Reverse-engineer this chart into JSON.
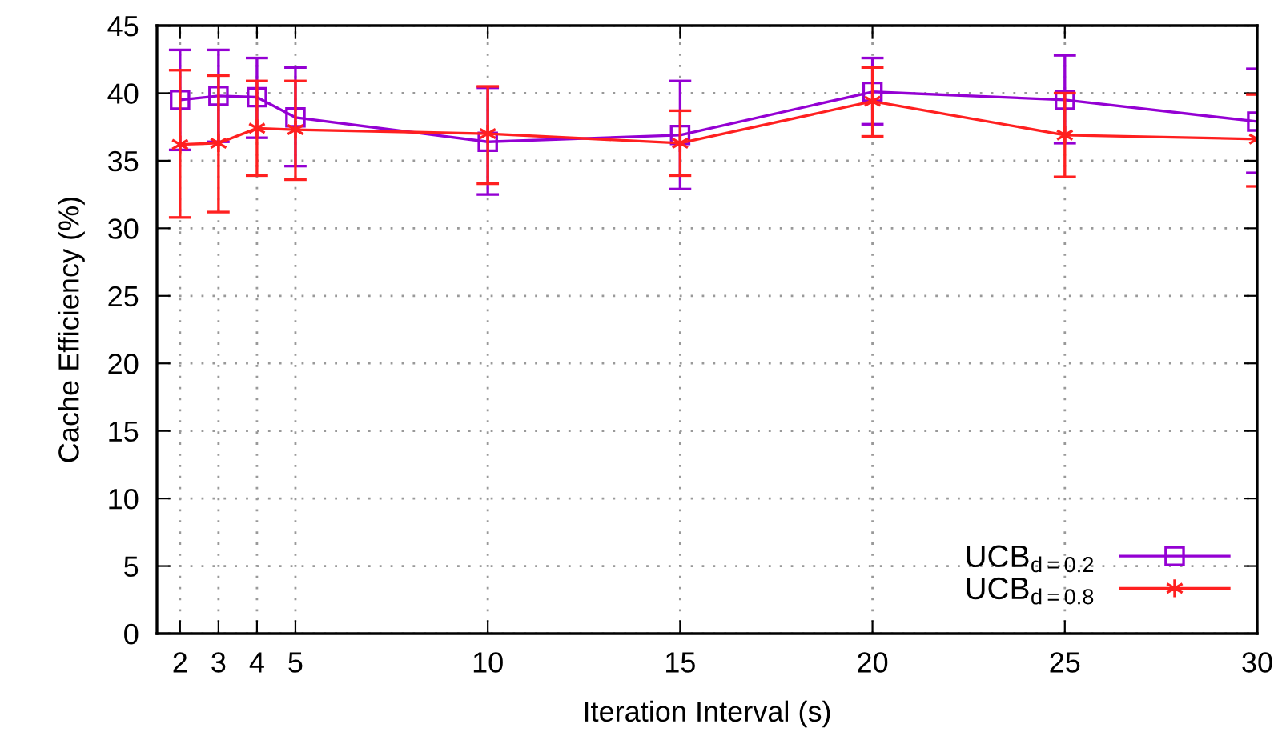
{
  "chart_data": {
    "type": "line",
    "xlabel": "Iteration Interval (s)",
    "ylabel": "Cache Efficiency (%)",
    "x": [
      2,
      3,
      4,
      5,
      10,
      15,
      20,
      25,
      30
    ],
    "xlim": [
      1.4,
      30
    ],
    "xticks": [
      2,
      3,
      4,
      5,
      10,
      15,
      20,
      25,
      30
    ],
    "ylim": [
      0,
      45
    ],
    "yticks": [
      0,
      5,
      10,
      15,
      20,
      25,
      30,
      35,
      40,
      45
    ],
    "grid": true,
    "legend": "bottom right",
    "series": [
      {
        "name": "UCB$_{d=0.2}$",
        "color": "#9400d3",
        "marker": "square",
        "values": [
          39.5,
          39.8,
          39.7,
          38.2,
          36.4,
          36.9,
          40.1,
          39.5,
          37.9
        ],
        "errors": [
          [
            35.8,
            43.2
          ],
          [
            36.4,
            43.2
          ],
          [
            36.7,
            42.6
          ],
          [
            34.6,
            41.9
          ],
          [
            32.5,
            40.4
          ],
          [
            32.9,
            40.9
          ],
          [
            37.7,
            42.6
          ],
          [
            36.3,
            42.8
          ],
          [
            34.1,
            41.8
          ]
        ]
      },
      {
        "name": "UCB$_{d=0.8}$",
        "color": "#ff2020",
        "marker": "cross",
        "values": [
          36.2,
          36.3,
          37.4,
          37.3,
          37.0,
          36.3,
          39.4,
          36.9,
          36.6
        ],
        "errors": [
          [
            30.8,
            41.7
          ],
          [
            31.2,
            41.3
          ],
          [
            33.9,
            40.9
          ],
          [
            33.6,
            40.9
          ],
          [
            33.3,
            40.5
          ],
          [
            33.9,
            38.7
          ],
          [
            36.8,
            41.9
          ],
          [
            33.8,
            40.0
          ],
          [
            33.1,
            39.9
          ]
        ]
      }
    ]
  }
}
